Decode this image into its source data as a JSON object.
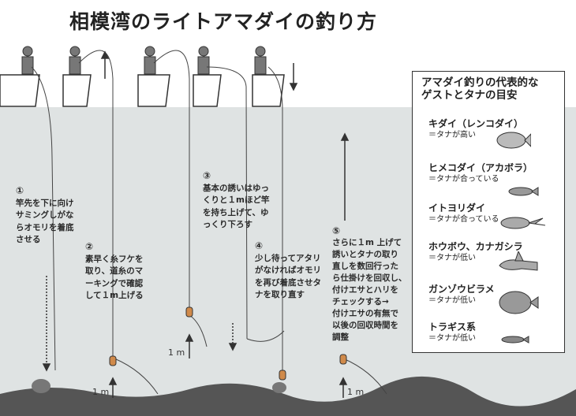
{
  "title": "相模湾のライトアマダイの釣り方",
  "steps": [
    {
      "num": "①",
      "text": "竿先を下に向け\nサミングしがな\nらオモリを着底\nさせる"
    },
    {
      "num": "②",
      "text": "素早く糸フケを\n取り、道糸のマ\nーキングで確認\nして１m上げる"
    },
    {
      "num": "③",
      "text": "基本の誘いはゆっ\nくりと１mほど竿\nを持ち上げて、ゆ\nっくり下ろす"
    },
    {
      "num": "④",
      "text": "少し待ってアタリ\nがなければオモリ\nを再び着底させタ\nナを取り直す"
    },
    {
      "num": "⑤",
      "text": "さらに１m 上げて\n誘いとタナの取り\n直しを数回行った\nら仕掛けを回収し、\n付けエサとハリを\nチェックする→\n付けエサの有無で\n以後の回収時間を\n調整"
    }
  ],
  "distance_labels": [
    "1 m",
    "1 m",
    "1 m"
  ],
  "panel": {
    "title": "アマダイ釣りの代表的な\nゲストとタナの目安",
    "fish": [
      {
        "name": "キダイ（レンコダイ）",
        "tana": "＝タナが高い"
      },
      {
        "name": "ヒメコダイ（アカボラ）",
        "tana": "＝タナが合っている"
      },
      {
        "name": "イトヨリダイ",
        "tana": "＝タナが合っている"
      },
      {
        "name": "ホウボウ、カナガシラ",
        "tana": "＝タナが低い"
      },
      {
        "name": "ガンゾウビラメ",
        "tana": "＝タナが低い"
      },
      {
        "name": "トラギス系",
        "tana": "＝タナが低い"
      }
    ]
  },
  "colors": {
    "water": "#dfe3e3",
    "seabed": "#5a5a5a",
    "text": "#222222"
  }
}
